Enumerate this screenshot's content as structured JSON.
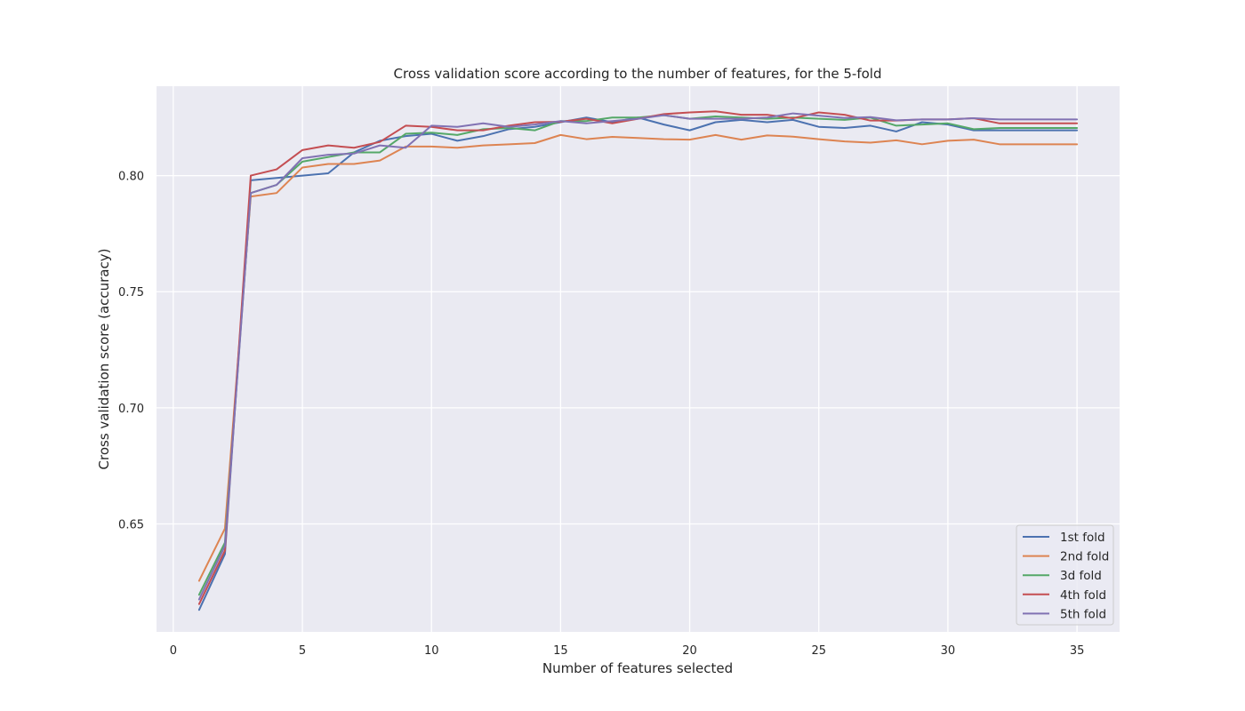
{
  "chart_data": {
    "type": "line",
    "title": "Cross validation score according to the number of features, for the 5-fold",
    "xlabel": "Number of features selected",
    "ylabel": "Cross validation score (accuracy)",
    "xlim": [
      -0.65,
      36.65
    ],
    "ylim": [
      0.6035,
      0.8385
    ],
    "xticks": [
      0,
      5,
      10,
      15,
      20,
      25,
      30,
      35
    ],
    "xtick_labels": [
      "0",
      "5",
      "10",
      "15",
      "20",
      "25",
      "30",
      "35"
    ],
    "yticks": [
      0.65,
      0.7,
      0.75,
      0.8
    ],
    "ytick_labels": [
      "0.65",
      "0.70",
      "0.75",
      "0.80"
    ],
    "grid": true,
    "legend_position": "lower-right",
    "x": [
      1,
      2,
      3,
      4,
      5,
      6,
      7,
      8,
      9,
      10,
      11,
      12,
      13,
      14,
      15,
      16,
      17,
      18,
      19,
      20,
      21,
      22,
      23,
      24,
      25,
      26,
      27,
      28,
      29,
      30,
      31,
      32,
      33,
      34,
      35
    ],
    "series": [
      {
        "name": "1st fold",
        "color": "#4c72b0",
        "values": [
          0.613,
          0.637,
          0.798,
          0.799,
          0.8,
          0.801,
          0.81,
          0.815,
          0.817,
          0.818,
          0.815,
          0.817,
          0.82,
          0.821,
          0.823,
          0.825,
          0.823,
          0.825,
          0.822,
          0.8195,
          0.823,
          0.824,
          0.823,
          0.824,
          0.821,
          0.8205,
          0.8215,
          0.819,
          0.823,
          0.822,
          0.8195,
          0.8195,
          0.8195,
          0.8195,
          0.8195
        ]
      },
      {
        "name": "2nd fold",
        "color": "#dd8452",
        "values": [
          0.6255,
          0.648,
          0.791,
          0.7925,
          0.8035,
          0.805,
          0.805,
          0.8065,
          0.8125,
          0.8125,
          0.812,
          0.813,
          0.8135,
          0.814,
          0.8175,
          0.8157,
          0.8167,
          0.8162,
          0.8157,
          0.8155,
          0.8175,
          0.8155,
          0.8173,
          0.8168,
          0.8157,
          0.8147,
          0.8142,
          0.8152,
          0.8135,
          0.815,
          0.8155,
          0.8135,
          0.8135,
          0.8135,
          0.8135
        ]
      },
      {
        "name": "3d fold",
        "color": "#55a868",
        "values": [
          0.6195,
          0.642,
          0.7925,
          0.796,
          0.806,
          0.808,
          0.81,
          0.81,
          0.818,
          0.8185,
          0.8175,
          0.82,
          0.8205,
          0.8195,
          0.8235,
          0.8235,
          0.825,
          0.825,
          0.826,
          0.8245,
          0.8255,
          0.825,
          0.8245,
          0.825,
          0.8245,
          0.824,
          0.825,
          0.8215,
          0.822,
          0.8225,
          0.82,
          0.8205,
          0.8205,
          0.8205,
          0.8205
        ]
      },
      {
        "name": "4th fold",
        "color": "#c44e52",
        "values": [
          0.6155,
          0.6385,
          0.8,
          0.8027,
          0.811,
          0.813,
          0.812,
          0.8145,
          0.8215,
          0.821,
          0.8195,
          0.8195,
          0.8215,
          0.823,
          0.8232,
          0.8245,
          0.8225,
          0.8245,
          0.8265,
          0.8272,
          0.8277,
          0.8262,
          0.8262,
          0.8247,
          0.8272,
          0.8262,
          0.8237,
          0.8237,
          0.8242,
          0.8242,
          0.8247,
          0.8225,
          0.8225,
          0.8225,
          0.8225
        ]
      },
      {
        "name": "5th fold",
        "color": "#8172b3",
        "values": [
          0.6175,
          0.6405,
          0.7925,
          0.796,
          0.8075,
          0.809,
          0.8095,
          0.813,
          0.812,
          0.8215,
          0.821,
          0.8225,
          0.821,
          0.822,
          0.8235,
          0.8225,
          0.8235,
          0.8245,
          0.826,
          0.8245,
          0.8245,
          0.8245,
          0.825,
          0.8268,
          0.8258,
          0.8248,
          0.8252,
          0.8238,
          0.8242,
          0.8242,
          0.8247,
          0.8242,
          0.8242,
          0.8242,
          0.8242
        ]
      }
    ]
  }
}
